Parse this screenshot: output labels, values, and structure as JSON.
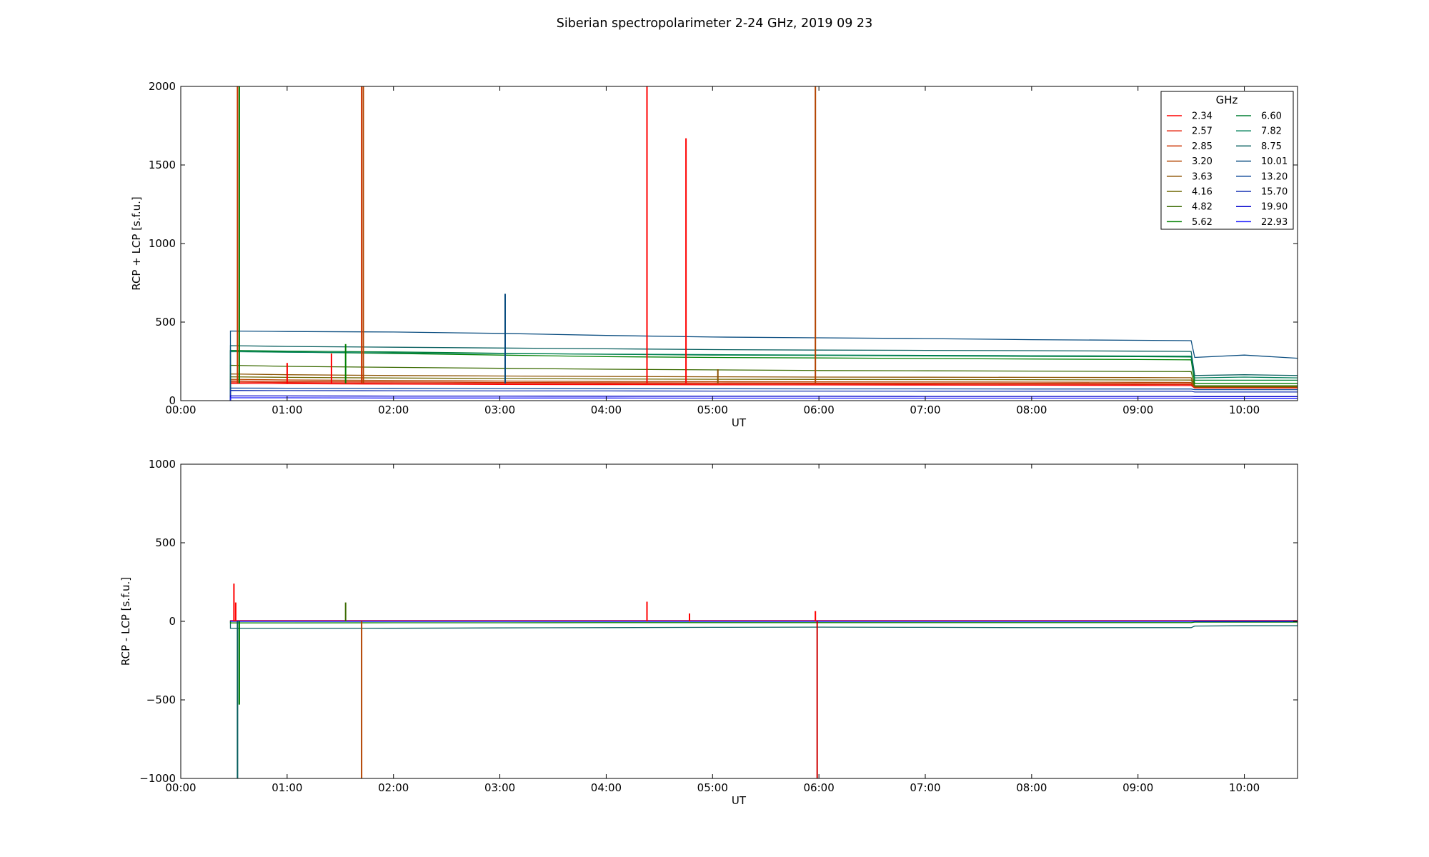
{
  "figure": {
    "title": "Siberian spectropolarimeter 2-24 GHz, 2019 09 23"
  },
  "legend": {
    "title": "GHz",
    "placement": "top-right",
    "columns": 2
  },
  "chart_data": [
    {
      "type": "line",
      "panel": "top",
      "xlabel": "UT",
      "ylabel": "RCP + LCP [s.f.u.]",
      "xlim": [
        "00:00",
        "10:30"
      ],
      "ylim": [
        0,
        2000
      ],
      "x_ticks": [
        "00:00",
        "01:00",
        "02:00",
        "03:00",
        "04:00",
        "05:00",
        "06:00",
        "07:00",
        "08:00",
        "09:00",
        "10:00"
      ],
      "y_ticks": [
        "0",
        "500",
        "1000",
        "1500",
        "2000"
      ],
      "x": [
        "00:28",
        "01:00",
        "02:00",
        "03:00",
        "04:00",
        "05:00",
        "06:00",
        "07:00",
        "08:00",
        "09:00",
        "09:30",
        "09:32",
        "10:00",
        "10:30"
      ],
      "series": [
        {
          "name": "2.34",
          "color": "#ff0000",
          "values": [
            110,
            108,
            105,
            103,
            102,
            101,
            100,
            99,
            98,
            97,
            96,
            80,
            80,
            80
          ]
        },
        {
          "name": "2.57",
          "color": "#e6200a",
          "values": [
            118,
            115,
            112,
            110,
            108,
            107,
            106,
            105,
            104,
            103,
            102,
            82,
            82,
            82
          ]
        },
        {
          "name": "2.85",
          "color": "#cc3300",
          "values": [
            126,
            122,
            119,
            116,
            114,
            113,
            112,
            111,
            110,
            109,
            108,
            84,
            84,
            84
          ]
        },
        {
          "name": "3.20",
          "color": "#b34400",
          "values": [
            136,
            132,
            128,
            125,
            122,
            121,
            120,
            119,
            118,
            117,
            116,
            86,
            86,
            86
          ]
        },
        {
          "name": "3.63",
          "color": "#8c5200",
          "values": [
            170,
            165,
            160,
            157,
            154,
            152,
            150,
            149,
            148,
            147,
            146,
            88,
            88,
            88
          ]
        },
        {
          "name": "4.16",
          "color": "#6e6600",
          "values": [
            152,
            148,
            144,
            141,
            138,
            136,
            135,
            134,
            133,
            132,
            131,
            90,
            90,
            90
          ]
        },
        {
          "name": "4.82",
          "color": "#3a6a00",
          "values": [
            225,
            218,
            212,
            206,
            200,
            196,
            192,
            190,
            188,
            186,
            185,
            95,
            95,
            95
          ]
        },
        {
          "name": "5.62",
          "color": "#008000",
          "values": [
            320,
            310,
            300,
            290,
            280,
            275,
            272,
            268,
            265,
            262,
            260,
            110,
            110,
            110
          ]
        },
        {
          "name": "6.60",
          "color": "#007f33",
          "values": [
            320,
            315,
            310,
            302,
            295,
            290,
            288,
            285,
            282,
            280,
            278,
            130,
            130,
            130
          ]
        },
        {
          "name": "7.82",
          "color": "#00805a",
          "values": [
            312,
            308,
            304,
            300,
            296,
            293,
            290,
            288,
            286,
            284,
            283,
            145,
            150,
            145
          ]
        },
        {
          "name": "8.75",
          "color": "#0a6060",
          "values": [
            350,
            345,
            340,
            335,
            330,
            325,
            322,
            320,
            318,
            315,
            313,
            160,
            165,
            160
          ]
        },
        {
          "name": "10.01",
          "color": "#0a4d80",
          "values": [
            443,
            440,
            437,
            428,
            415,
            405,
            400,
            395,
            388,
            384,
            382,
            275,
            290,
            270
          ]
        },
        {
          "name": "13.20",
          "color": "#104a99",
          "values": [
            80,
            79,
            78,
            77,
            76,
            76,
            75,
            75,
            74,
            74,
            74,
            70,
            70,
            70
          ]
        },
        {
          "name": "15.70",
          "color": "#1530b3",
          "values": [
            65,
            64,
            63,
            62,
            62,
            61,
            61,
            60,
            60,
            60,
            60,
            55,
            55,
            55
          ]
        },
        {
          "name": "19.90",
          "color": "#0000cc",
          "values": [
            30,
            30,
            29,
            29,
            28,
            28,
            28,
            27,
            27,
            27,
            27,
            26,
            26,
            26
          ]
        },
        {
          "name": "22.93",
          "color": "#1a1aff",
          "values": [
            18,
            18,
            17,
            17,
            17,
            16,
            16,
            16,
            16,
            16,
            16,
            15,
            15,
            15
          ]
        }
      ],
      "spikes": [
        {
          "t": "00:32",
          "peak": 2000,
          "color": "#cc3300"
        },
        {
          "t": "00:33",
          "peak": 2000,
          "color": "#008000"
        },
        {
          "t": "01:00",
          "peak": 240,
          "color": "#ff0000"
        },
        {
          "t": "01:25",
          "peak": 300,
          "color": "#ff0000"
        },
        {
          "t": "01:33",
          "peak": 360,
          "color": "#008000"
        },
        {
          "t": "01:42",
          "peak": 2000,
          "color": "#cc3300"
        },
        {
          "t": "01:43",
          "peak": 2000,
          "color": "#b34400"
        },
        {
          "t": "03:03",
          "peak": 680,
          "color": "#0a4d80"
        },
        {
          "t": "04:23",
          "peak": 2000,
          "color": "#ff0000"
        },
        {
          "t": "04:45",
          "peak": 1670,
          "color": "#ff0000"
        },
        {
          "t": "05:03",
          "peak": 200,
          "color": "#8c5200"
        },
        {
          "t": "05:58",
          "peak": 2000,
          "color": "#b34400"
        }
      ]
    },
    {
      "type": "line",
      "panel": "bottom",
      "xlabel": "UT",
      "ylabel": "RCP - LCP [s.f.u.]",
      "xlim": [
        "00:00",
        "10:30"
      ],
      "ylim": [
        -1000,
        1000
      ],
      "x_ticks": [
        "00:00",
        "01:00",
        "02:00",
        "03:00",
        "04:00",
        "05:00",
        "06:00",
        "07:00",
        "08:00",
        "09:00",
        "10:00"
      ],
      "y_ticks": [
        "−1000",
        "−500",
        "0",
        "500",
        "1000"
      ],
      "x": [
        "00:28",
        "01:00",
        "02:00",
        "03:00",
        "04:00",
        "05:00",
        "06:00",
        "07:00",
        "08:00",
        "09:00",
        "09:30",
        "09:32",
        "10:00",
        "10:30"
      ],
      "series": [
        {
          "name": "8.75",
          "color": "#0a6060",
          "values": [
            -45,
            -45,
            -44,
            -42,
            -40,
            -38,
            -37,
            -38,
            -40,
            -40,
            -40,
            -30,
            -28,
            -28
          ]
        },
        {
          "name": "5.62",
          "color": "#008000",
          "values": [
            -10,
            -10,
            -9,
            -9,
            -8,
            -8,
            -8,
            -8,
            -8,
            -8,
            -8,
            -5,
            -5,
            -5
          ]
        },
        {
          "name": "2.34",
          "color": "#ff0000",
          "values": [
            5,
            5,
            5,
            5,
            5,
            5,
            5,
            5,
            5,
            5,
            5,
            5,
            5,
            5
          ]
        },
        {
          "name": "19.90",
          "color": "#0000cc",
          "values": [
            0,
            0,
            0,
            0,
            0,
            0,
            0,
            0,
            0,
            0,
            0,
            0,
            0,
            0
          ]
        },
        {
          "name": "22.93",
          "color": "#1a1aff",
          "values": [
            2,
            2,
            2,
            2,
            2,
            2,
            2,
            2,
            2,
            2,
            2,
            2,
            2,
            2
          ]
        }
      ],
      "spikes": [
        {
          "t": "00:30",
          "peak": 240,
          "color": "#ff0000"
        },
        {
          "t": "00:31",
          "peak": 120,
          "color": "#ff0000"
        },
        {
          "t": "00:32",
          "peak": -1000,
          "color": "#0a6060"
        },
        {
          "t": "00:33",
          "peak": -530,
          "color": "#008000"
        },
        {
          "t": "01:33",
          "peak": 120,
          "color": "#3a6a00"
        },
        {
          "t": "01:42",
          "peak": -1000,
          "color": "#b34400"
        },
        {
          "t": "04:23",
          "peak": 125,
          "color": "#ff0000"
        },
        {
          "t": "04:47",
          "peak": 50,
          "color": "#ff0000"
        },
        {
          "t": "05:58",
          "peak": 65,
          "color": "#ff0000"
        },
        {
          "t": "05:59",
          "peak": -1000,
          "color": "#cc0000"
        }
      ]
    }
  ]
}
